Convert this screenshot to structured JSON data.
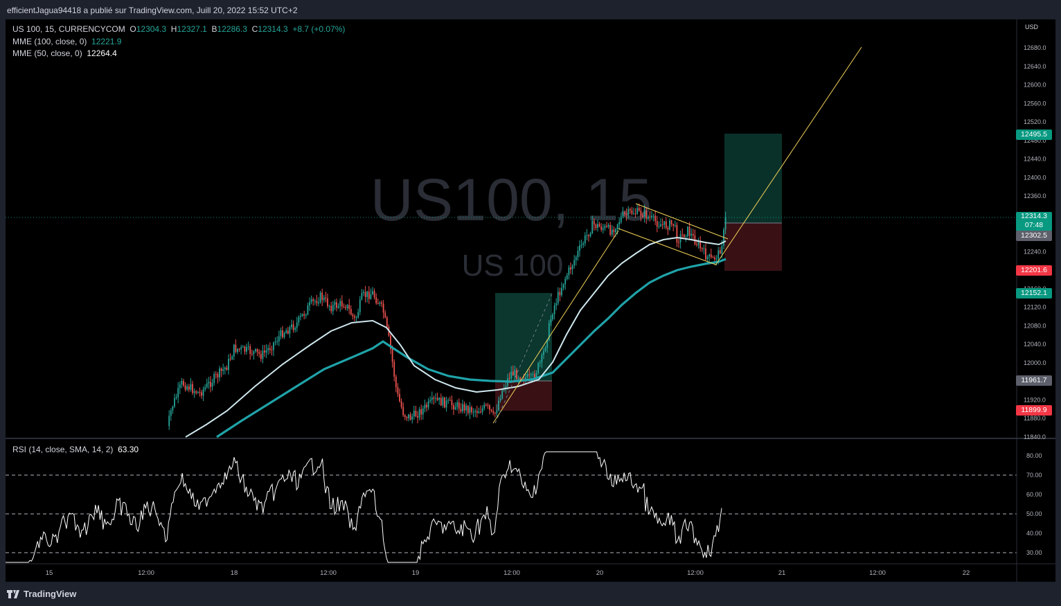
{
  "header": {
    "publisher_text": "efficientJagua94418 a publié sur TradingView.com, Juill 20, 2022 15:52 UTC+2"
  },
  "legend": {
    "symbol": "US 100, 15, CURRENCYCOM",
    "o_label": "O",
    "o_value": "12304.3",
    "h_label": "H",
    "h_value": "12327.1",
    "b_label": "B",
    "b_value": "12286.3",
    "c_label": "C",
    "c_value": "12314.3",
    "change": "+8.7 (+0.07%)",
    "ema100_label": "MME (100, close, 0)",
    "ema100_value": "12221.9",
    "ema50_label": "MME (50, close, 0)",
    "ema50_value": "12264.4",
    "rsi_label": "RSI (14, close, SMA, 14, 2)",
    "rsi_value": "63.30"
  },
  "watermark": {
    "line1": "US100, 15",
    "line2": "US 100"
  },
  "price_axis": {
    "currency": "USD",
    "ticks": [
      "12680.0",
      "12640.0",
      "12600.0",
      "12560.0",
      "12520.0",
      "12480.0",
      "12440.0",
      "12400.0",
      "12360.0",
      "12240.0",
      "12160.0",
      "12120.0",
      "12080.0",
      "12040.0",
      "12000.0",
      "11920.0",
      "11880.0",
      "11840.0"
    ],
    "tags": {
      "target_upper": "12495.5",
      "last_price": "12314.3",
      "countdown": "07:48",
      "entry": "12302.5",
      "stop_upper": "12201.6",
      "target_lower": "12152.1",
      "entry_lower": "11961.7",
      "stop_lower": "11899.9"
    }
  },
  "rsi_axis": {
    "ticks": [
      "80.00",
      "70.00",
      "60.00",
      "50.00",
      "40.00",
      "30.00"
    ]
  },
  "time_axis": {
    "labels": [
      "15",
      "12:00",
      "18",
      "12:00",
      "19",
      "12:00",
      "20",
      "12:00",
      "21",
      "12:00",
      "22"
    ]
  },
  "footer": {
    "brand": "TradingView"
  },
  "colors": {
    "background": "#000000",
    "up_candle": "#26a69a",
    "down_candle": "#ef5350",
    "ema100": "#1fa3a9",
    "ema50": "#cfe8ef",
    "trendline": "#f3d35a",
    "rsi_line": "#ffffff",
    "target_zone": "#0c3a30",
    "stop_zone": "#3c1216",
    "tag_green": "#089981",
    "tag_red": "#f23645",
    "tag_grey": "#5d606b"
  }
}
